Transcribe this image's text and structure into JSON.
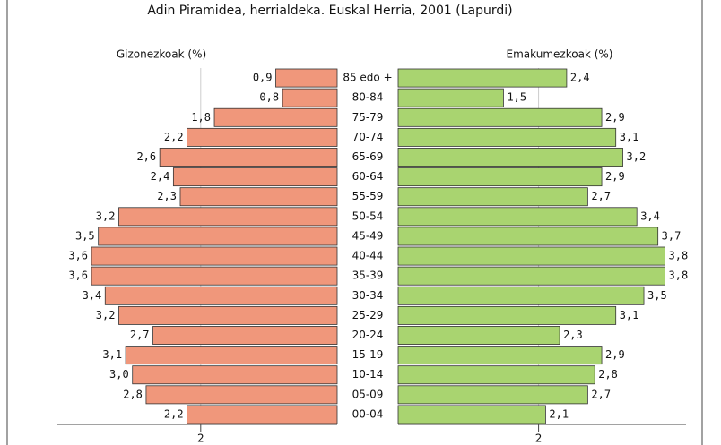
{
  "chart_data": {
    "type": "pyramid",
    "title": "Adin Piramidea, herrialdeka. Euskal Herria, 2001 (Lapurdi)",
    "categories": [
      "85 edo +",
      "80-84",
      "75-79",
      "70-74",
      "65-69",
      "60-64",
      "55-59",
      "50-54",
      "45-49",
      "40-44",
      "35-39",
      "30-34",
      "25-29",
      "20-24",
      "15-19",
      "10-14",
      "05-09",
      "00-04"
    ],
    "series": [
      {
        "name": "Gizonezkoak (%)",
        "color": "#f0977b",
        "values": [
          0.9,
          0.8,
          1.8,
          2.2,
          2.6,
          2.4,
          2.3,
          3.2,
          3.5,
          3.6,
          3.6,
          3.4,
          3.2,
          2.7,
          3.1,
          3.0,
          2.8,
          2.2
        ],
        "value_labels": [
          "0,9",
          "0,8",
          "1,8",
          "2,2",
          "2,6",
          "2,4",
          "2,3",
          "3,2",
          "3,5",
          "3,6",
          "3,6",
          "3,4",
          "3,2",
          "2,7",
          "3,1",
          "3,0",
          "2,8",
          "2,2"
        ]
      },
      {
        "name": "Emakumezkoak (%)",
        "color": "#a9d470",
        "values": [
          2.4,
          1.5,
          2.9,
          3.1,
          3.2,
          2.9,
          2.7,
          3.4,
          3.7,
          3.8,
          3.8,
          3.5,
          3.1,
          2.3,
          2.9,
          2.8,
          2.7,
          2.1
        ],
        "value_labels": [
          "2,4",
          "1,5",
          "2,9",
          "3,1",
          "3,2",
          "2,9",
          "2,7",
          "3,4",
          "3,7",
          "3,8",
          "3,8",
          "3,5",
          "3,1",
          "2,3",
          "2,9",
          "2,8",
          "2,7",
          "2,1"
        ]
      }
    ],
    "xlim": [
      0,
      4.1
    ],
    "xticks": [
      2
    ],
    "grid": true
  }
}
